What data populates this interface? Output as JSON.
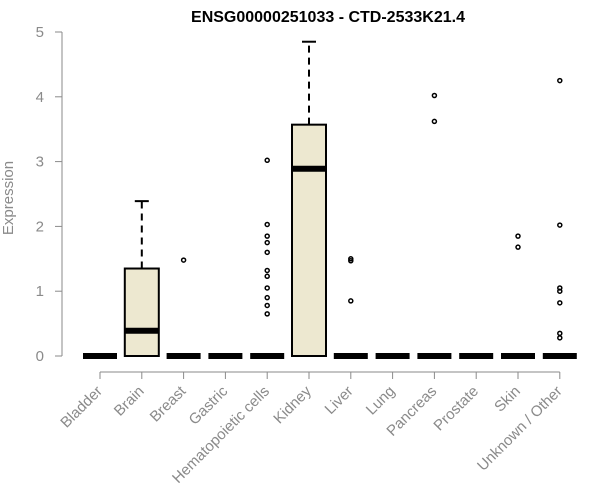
{
  "chart_data": {
    "type": "box",
    "title": "ENSG00000251033 - CTD-2533K21.4",
    "xlabel": "",
    "ylabel": "Expression",
    "ylim": [
      0,
      5
    ],
    "yticks": [
      "0",
      "1",
      "2",
      "3",
      "4",
      "5"
    ],
    "grid": false,
    "categories": [
      "Bladder",
      "Brain",
      "Breast",
      "Gastric",
      "Hematopoietic cells",
      "Kidney",
      "Liver",
      "Lung",
      "Pancreas",
      "Prostate",
      "Skin",
      "Unknown / Other"
    ],
    "boxes": [
      {
        "category": "Bladder",
        "q1": 0,
        "median": 0,
        "q3": 0,
        "whisker_low": 0,
        "whisker_high": 0,
        "outliers": []
      },
      {
        "category": "Brain",
        "q1": 0,
        "median": 0.39,
        "q3": 1.35,
        "whisker_low": 0,
        "whisker_high": 2.39,
        "outliers": []
      },
      {
        "category": "Breast",
        "q1": 0,
        "median": 0,
        "q3": 0,
        "whisker_low": 0,
        "whisker_high": 0,
        "outliers": [
          1.48
        ]
      },
      {
        "category": "Gastric",
        "q1": 0,
        "median": 0,
        "q3": 0,
        "whisker_low": 0,
        "whisker_high": 0,
        "outliers": []
      },
      {
        "category": "Hematopoietic cells",
        "q1": 0,
        "median": 0,
        "q3": 0,
        "whisker_low": 0,
        "whisker_high": 0,
        "outliers": [
          3.02,
          2.03,
          1.85,
          1.75,
          1.6,
          1.32,
          1.23,
          1.05,
          0.9,
          0.78,
          0.65
        ]
      },
      {
        "category": "Kidney",
        "q1": 0,
        "median": 2.89,
        "q3": 3.57,
        "whisker_low": 0,
        "whisker_high": 4.85,
        "outliers": []
      },
      {
        "category": "Liver",
        "q1": 0,
        "median": 0,
        "q3": 0,
        "whisker_low": 0,
        "whisker_high": 0,
        "outliers": [
          1.5,
          1.47,
          0.85
        ]
      },
      {
        "category": "Lung",
        "q1": 0,
        "median": 0,
        "q3": 0,
        "whisker_low": 0,
        "whisker_high": 0,
        "outliers": []
      },
      {
        "category": "Pancreas",
        "q1": 0,
        "median": 0,
        "q3": 0,
        "whisker_low": 0,
        "whisker_high": 0,
        "outliers": [
          4.02,
          3.62
        ]
      },
      {
        "category": "Prostate",
        "q1": 0,
        "median": 0,
        "q3": 0,
        "whisker_low": 0,
        "whisker_high": 0,
        "outliers": []
      },
      {
        "category": "Skin",
        "q1": 0,
        "median": 0,
        "q3": 0,
        "whisker_low": 0,
        "whisker_high": 0,
        "outliers": [
          1.85,
          1.68
        ]
      },
      {
        "category": "Unknown / Other",
        "q1": 0,
        "median": 0,
        "q3": 0,
        "whisker_low": 0,
        "whisker_high": 0,
        "outliers": [
          4.25,
          2.02,
          1.05,
          1.0,
          0.82,
          0.35,
          0.28
        ]
      }
    ],
    "colors": {
      "box_fill": "#ede8d0",
      "box_stroke": "#000000",
      "axis": "#8a8a8a",
      "text": "#8a8a8a",
      "title": "#000000"
    }
  }
}
